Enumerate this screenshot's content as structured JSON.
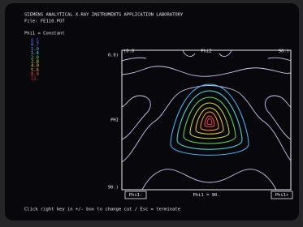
{
  "header": {
    "title": "SIEMENS ANALYTICAL X-RAY INSTRUMENTS APPLICATION LABORATORY",
    "file": "File: FE110.POT",
    "section": "Phi1 = Constant"
  },
  "legend": {
    "levels": [
      {
        "label": "0.5",
        "color": "#5a6cff"
      },
      {
        "label": "0.7",
        "color": "#7a8cff"
      },
      {
        "label": "1.0",
        "color": "#4fb8ff"
      },
      {
        "label": "1.4",
        "color": "#50e0e0"
      },
      {
        "label": "2.0",
        "color": "#60e060"
      },
      {
        "label": "2.8",
        "color": "#c8e040"
      },
      {
        "label": "4.0",
        "color": "#f0d040"
      },
      {
        "label": "5.6",
        "color": "#ff9a30"
      },
      {
        "label": "8.0",
        "color": "#ff5030"
      },
      {
        "label": "11.",
        "color": "#ff3060"
      }
    ]
  },
  "plot": {
    "top_left": "(0.0",
    "top_center": "Phi2",
    "top_right": "90.)",
    "left_top": "0.0)",
    "left_mid": "PHI",
    "left_bottom": "90.)"
  },
  "controls": {
    "minus": "Phi1-",
    "current": "Phi1 = 90.",
    "plus": "Phi1+"
  },
  "footer": "Click right key in +/- box to change cut / Esc = terminate"
}
